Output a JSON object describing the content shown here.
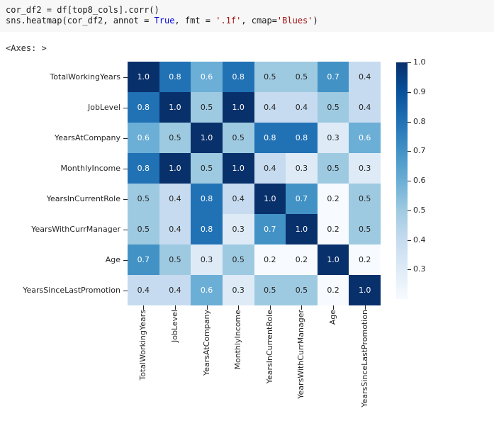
{
  "code_cell": {
    "lines": [
      [
        {
          "text": "cor_df2 = df[top8_cols].corr()",
          "type": "plain"
        }
      ],
      [
        {
          "text": "sns.heatmap(cor_df2, annot = ",
          "type": "plain"
        },
        {
          "text": "True",
          "type": "keyword"
        },
        {
          "text": ", fmt = ",
          "type": "plain"
        },
        {
          "text": "'.1f'",
          "type": "string"
        },
        {
          "text": ", cmap=",
          "type": "plain"
        },
        {
          "text": "'Blues'",
          "type": "string"
        },
        {
          "text": ")",
          "type": "plain"
        }
      ]
    ]
  },
  "output_line": "<Axes: >",
  "chart_data": {
    "type": "heatmap",
    "title": "",
    "xlabel": "",
    "ylabel": "",
    "colormap": "Blues",
    "value_format": ".1f",
    "vmin": 0.2,
    "vmax": 1.0,
    "categories": [
      "TotalWorkingYears",
      "JobLevel",
      "YearsAtCompany",
      "MonthlyIncome",
      "YearsInCurrentRole",
      "YearsWithCurrManager",
      "Age",
      "YearsSinceLastPromotion"
    ],
    "matrix": [
      [
        1.0,
        0.8,
        0.6,
        0.8,
        0.5,
        0.5,
        0.7,
        0.4
      ],
      [
        0.8,
        1.0,
        0.5,
        1.0,
        0.4,
        0.4,
        0.5,
        0.4
      ],
      [
        0.6,
        0.5,
        1.0,
        0.5,
        0.8,
        0.8,
        0.3,
        0.6
      ],
      [
        0.8,
        1.0,
        0.5,
        1.0,
        0.4,
        0.3,
        0.5,
        0.3
      ],
      [
        0.5,
        0.4,
        0.8,
        0.4,
        1.0,
        0.7,
        0.2,
        0.5
      ],
      [
        0.5,
        0.4,
        0.8,
        0.3,
        0.7,
        1.0,
        0.2,
        0.5
      ],
      [
        0.7,
        0.5,
        0.3,
        0.5,
        0.2,
        0.2,
        1.0,
        0.2
      ],
      [
        0.4,
        0.4,
        0.6,
        0.3,
        0.5,
        0.5,
        0.2,
        1.0
      ]
    ],
    "colorbar_ticks": [
      "1.0",
      "0.9",
      "0.8",
      "0.7",
      "0.6",
      "0.5",
      "0.4",
      "0.3"
    ],
    "palette": {
      "1.0": "#08306b",
      "0.9": "#08519c",
      "0.8": "#2171b5",
      "0.7": "#4292c6",
      "0.6": "#6baed6",
      "0.5": "#9ecae1",
      "0.4": "#c6dbef",
      "0.3": "#deebf7",
      "0.2": "#f7fbff"
    },
    "annot_colors": {
      "on_light": "#262626",
      "on_dark": "#ffffff"
    },
    "white_text_min_value": 0.6,
    "legend_position": "right-colorbar",
    "grid": false
  },
  "colors": {
    "page_bg": "#ffffff",
    "code_bg": "#f7f7f7",
    "code_plain": "#1b1b1b",
    "code_keyword": "#0000e0",
    "code_string": "#a31515",
    "tick_label": "#262626"
  }
}
